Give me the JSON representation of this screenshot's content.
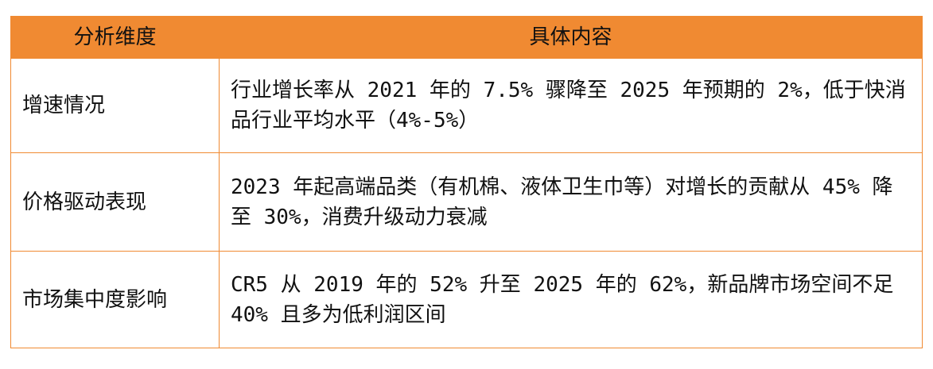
{
  "table": {
    "headers": [
      "分析维度",
      "具体内容"
    ],
    "rows": [
      {
        "dimension": "增速情况",
        "content": "行业增长率从 2021 年的 7.5% 骤降至 2025 年预期的 2%，低于快消品行业平均水平（4%-5%）"
      },
      {
        "dimension": "价格驱动表现",
        "content": "2023 年起高端品类（有机棉、液体卫生巾等）对增长的贡献从 45% 降至 30%，消费升级动力衰减"
      },
      {
        "dimension": "市场集中度影响",
        "content": "CR5 从 2019 年的 52% 升至 2025 年的 62%，新品牌市场空间不足 40% 且多为低利润区间"
      }
    ]
  },
  "colors": {
    "header_bg": "#f08a32",
    "border": "#f08a32",
    "text": "#111111"
  }
}
